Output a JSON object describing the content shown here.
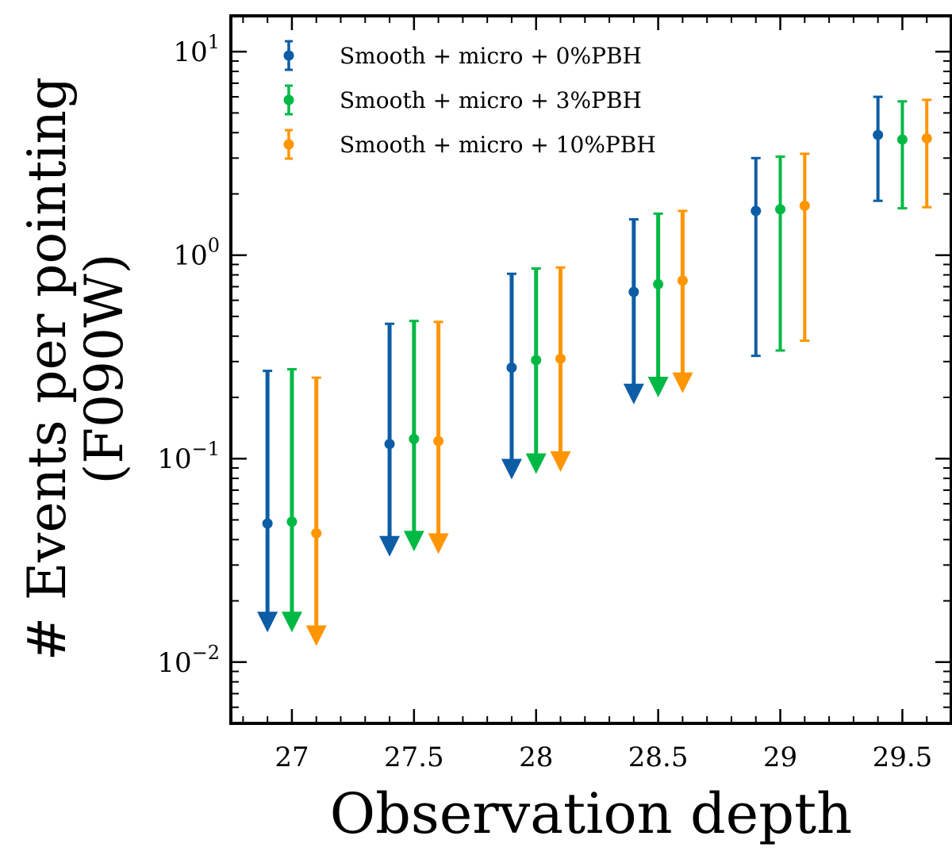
{
  "chart_data": {
    "type": "scatter",
    "title": "",
    "xlabel": "Observation depth",
    "ylabel_line1": "# Events per pointing",
    "ylabel_line2": "(F090W)",
    "xscale": "linear",
    "yscale": "log",
    "xlim": [
      26.75,
      29.7
    ],
    "ylim": [
      0.005,
      15
    ],
    "xticks": [
      27,
      27.5,
      28,
      28.5,
      29,
      29.5
    ],
    "xtick_labels": [
      "27",
      "27.5",
      "28",
      "28.5",
      "29",
      "29.5"
    ],
    "yticks": [
      {
        "value": 10,
        "base": "10",
        "exp": "1"
      },
      {
        "value": 1,
        "base": "10",
        "exp": "0"
      },
      {
        "value": 0.1,
        "base": "10",
        "exp": "−1"
      },
      {
        "value": 0.01,
        "base": "10",
        "exp": "−2"
      }
    ],
    "grid": false,
    "legend_position": "top-left",
    "series": [
      {
        "name": "Smooth + micro + 0%PBH",
        "color": "#0c5da5",
        "x": [
          26.9,
          27.4,
          27.9,
          28.4,
          28.9,
          29.4
        ],
        "y": [
          0.048,
          0.118,
          0.28,
          0.66,
          1.65,
          3.9
        ],
        "upper": [
          0.27,
          0.46,
          0.81,
          1.5,
          3.0,
          6.0
        ],
        "lower": [
          0.014,
          0.033,
          0.079,
          0.185,
          0.32,
          1.85
        ],
        "upper_limit": [
          true,
          true,
          true,
          true,
          false,
          false
        ]
      },
      {
        "name": "Smooth + micro + 3%PBH",
        "color": "#00b945",
        "x": [
          27.0,
          27.5,
          28.0,
          28.5,
          29.0,
          29.5
        ],
        "y": [
          0.049,
          0.125,
          0.305,
          0.72,
          1.68,
          3.7
        ],
        "upper": [
          0.275,
          0.475,
          0.86,
          1.6,
          3.05,
          5.7
        ],
        "lower": [
          0.014,
          0.035,
          0.084,
          0.2,
          0.34,
          1.7
        ],
        "upper_limit": [
          true,
          true,
          true,
          true,
          false,
          false
        ]
      },
      {
        "name": "Smooth + micro + 10%PBH",
        "color": "#ff9500",
        "x": [
          27.1,
          27.6,
          28.1,
          28.6,
          29.1,
          29.6
        ],
        "y": [
          0.043,
          0.122,
          0.31,
          0.75,
          1.75,
          3.75
        ],
        "upper": [
          0.25,
          0.47,
          0.87,
          1.65,
          3.15,
          5.8
        ],
        "lower": [
          0.012,
          0.034,
          0.086,
          0.21,
          0.38,
          1.72
        ],
        "upper_limit": [
          true,
          true,
          true,
          true,
          false,
          false
        ]
      }
    ]
  }
}
